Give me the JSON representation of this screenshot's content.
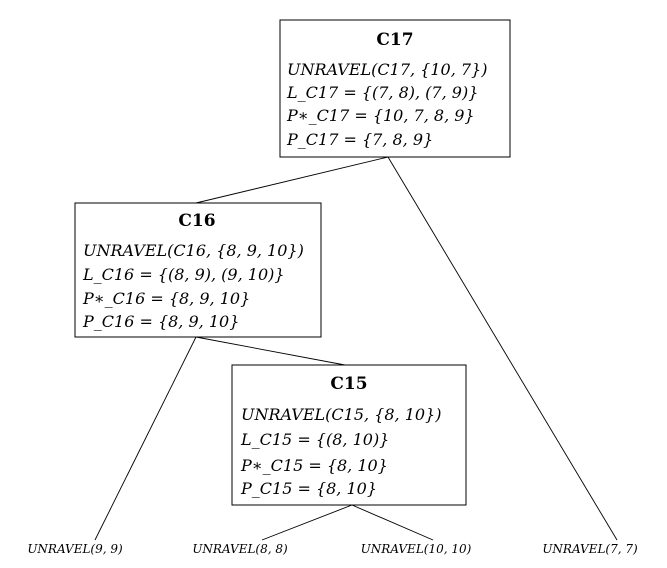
{
  "nodes": {
    "c17": {
      "title": "C17",
      "lines": [
        "UNRAVEL(C17, {10, 7})",
        "L_C17 = {(7, 8), (7, 9)}",
        "P∗_C17 = {10, 7, 8, 9}",
        "P_C17 = {7, 8, 9}"
      ]
    },
    "c16": {
      "title": "C16",
      "lines": [
        "UNRAVEL(C16, {8, 9, 10})",
        "L_C16 = {(8, 9), (9, 10)}",
        "P∗_C16 = {8, 9, 10}",
        "P_C16 = {8, 9, 10}"
      ]
    },
    "c15": {
      "title": "C15",
      "lines": [
        "UNRAVEL(C15, {8, 10})",
        "L_C15 = {(8, 10)}",
        "P∗_C15 = {8, 10}",
        "P_C15 = {8, 10}"
      ]
    }
  },
  "leaves": {
    "l99": "UNRAVEL(9, 9)",
    "l88": "UNRAVEL(8, 8)",
    "l1010": "UNRAVEL(10, 10)",
    "l77": "UNRAVEL(7, 7)"
  }
}
